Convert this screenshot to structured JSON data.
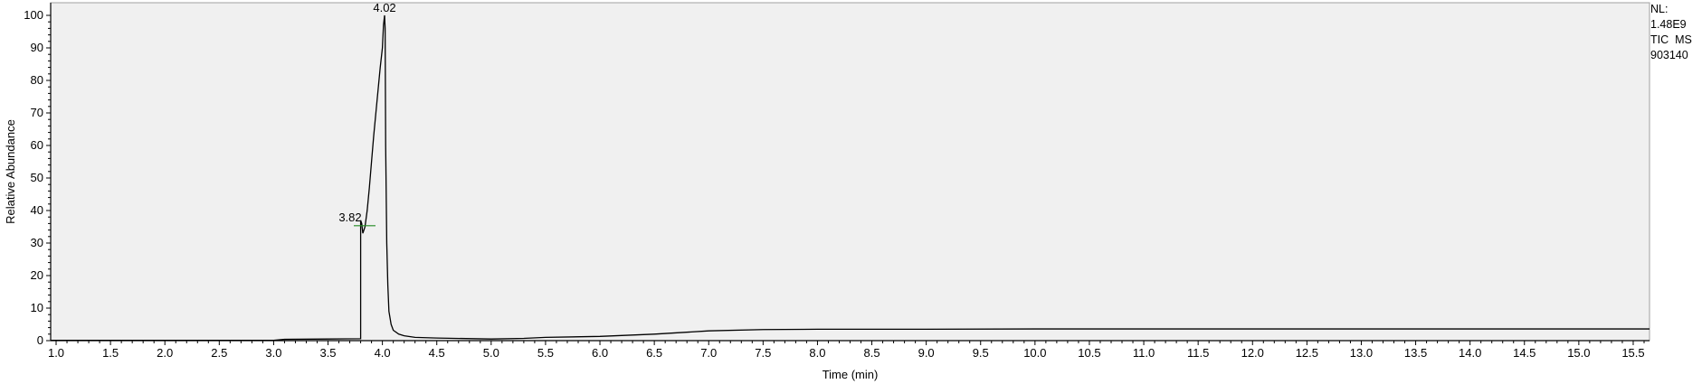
{
  "chart_data": {
    "type": "line",
    "title": "",
    "xlabel": "Time (min)",
    "ylabel": "Relative Abundance",
    "xlim": [
      0.95,
      15.65
    ],
    "ylim": [
      0,
      100
    ],
    "grid": false,
    "x_ticks": [
      "1.0",
      "1.5",
      "2.0",
      "2.5",
      "3.0",
      "3.5",
      "4.0",
      "4.5",
      "5.0",
      "5.5",
      "6.0",
      "6.5",
      "7.0",
      "7.5",
      "8.0",
      "8.5",
      "9.0",
      "9.5",
      "10.0",
      "10.5",
      "11.0",
      "11.5",
      "12.0",
      "12.5",
      "13.0",
      "13.5",
      "14.0",
      "14.5",
      "15.0",
      "15.5"
    ],
    "y_ticks": [
      "0",
      "10",
      "20",
      "30",
      "40",
      "50",
      "60",
      "70",
      "80",
      "90",
      "100"
    ],
    "series": [
      {
        "x": [
          0.95,
          3.0,
          3.1,
          3.5,
          3.8,
          3.8,
          3.81,
          3.82,
          3.84,
          3.86,
          3.88,
          3.9,
          3.92,
          3.94,
          3.96,
          3.98,
          4.0,
          4.01,
          4.02,
          4.025,
          4.03,
          4.04,
          4.05,
          4.06,
          4.08,
          4.1,
          4.15,
          4.2,
          4.3,
          4.5,
          5.0,
          5.3,
          5.5,
          6.0,
          6.5,
          7.0,
          7.5,
          8.0,
          9.0,
          10.0,
          11.0,
          12.0,
          13.0,
          14.0,
          15.0,
          15.65
        ],
        "y": [
          0.1,
          0.1,
          0.4,
          0.5,
          0.6,
          37.0,
          36.0,
          33.0,
          35.0,
          40.0,
          47.0,
          55.0,
          63.0,
          70.0,
          77.0,
          84.0,
          90.0,
          97.0,
          100.0,
          96.0,
          60.0,
          30.0,
          17.0,
          9.0,
          5.0,
          3.2,
          2.0,
          1.5,
          1.0,
          0.8,
          0.5,
          0.7,
          1.0,
          1.3,
          2.0,
          3.0,
          3.4,
          3.5,
          3.5,
          3.6,
          3.6,
          3.6,
          3.6,
          3.6,
          3.6,
          3.6
        ]
      }
    ],
    "annotations": [
      {
        "label": "4.02",
        "x": 4.02,
        "y": 100
      },
      {
        "label": "3.82",
        "x": 3.82,
        "y": 37
      }
    ]
  },
  "info": {
    "line1": "NL:",
    "line2": "1.48E9",
    "line3": "TIC  MS",
    "line4": "903140"
  },
  "colors": {
    "plot_bg": "#f0f0f0",
    "trace": "#000000",
    "marker": "#228b22"
  }
}
